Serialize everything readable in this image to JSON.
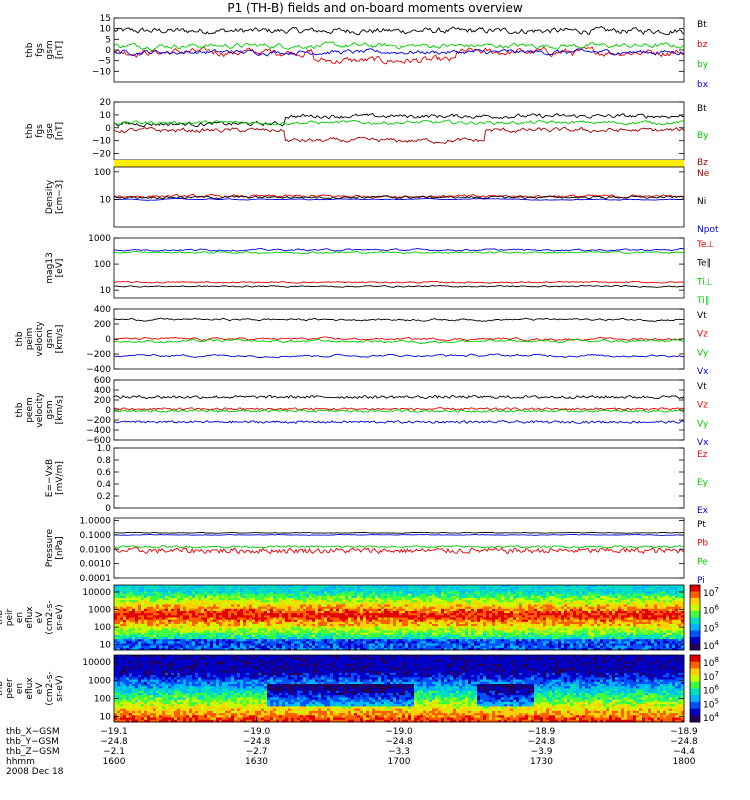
{
  "title": "P1 (TH-B) fields and on-board moments overview",
  "colors": {
    "black": "#000000",
    "red": "#ee0000",
    "green": "#00cc00",
    "blue": "#0000dd",
    "yellow": "#ffee00",
    "darkred": "#a00000"
  },
  "chart_data": [
    {
      "id": "p1",
      "type": "line",
      "ylabel": [
        "thb",
        "fgs",
        "gsm",
        "[nT]"
      ],
      "ylim": [
        -15,
        15
      ],
      "yticks": [
        -10,
        -5,
        0,
        5,
        10,
        15
      ],
      "yticklabels": [
        "−10",
        "−5",
        "0",
        "5",
        "10",
        "15"
      ],
      "legend": [
        {
          "text": "Bt",
          "color": "black"
        },
        {
          "text": "bz",
          "color": "red"
        },
        {
          "text": "by",
          "color": "green"
        },
        {
          "text": "bx",
          "color": "blue"
        }
      ]
    },
    {
      "id": "p2",
      "type": "line",
      "ylabel": [
        "thb",
        "fgs",
        "gse",
        "[nT]"
      ],
      "ylim": [
        -25,
        20
      ],
      "yticks": [
        -20,
        -10,
        0,
        10,
        20
      ],
      "yticklabels": [
        "−20",
        "−10",
        "0",
        "10",
        "20"
      ],
      "legend": [
        {
          "text": "Bt",
          "color": "black"
        },
        {
          "text": "By",
          "color": "green"
        },
        {
          "text": "Bz",
          "color": "darkred"
        }
      ]
    },
    {
      "id": "p3",
      "type": "bar",
      "note": "flag"
    },
    {
      "id": "p4",
      "type": "line",
      "ylabel": [
        "Density",
        "[cm−3]"
      ],
      "scale": "log",
      "ylim": [
        1,
        150
      ],
      "yticks": [
        10,
        100
      ],
      "yticklabels": [
        "10",
        "100"
      ],
      "legend": [
        {
          "text": "Ne",
          "color": "darkred"
        },
        {
          "text": "Ni",
          "color": "black"
        },
        {
          "text": "Npot",
          "color": "blue"
        }
      ]
    },
    {
      "id": "p5",
      "type": "line",
      "ylabel": [
        "mag13",
        "[eV]"
      ],
      "scale": "log",
      "ylim": [
        5,
        1000
      ],
      "yticks": [
        10,
        100,
        1000
      ],
      "yticklabels": [
        "10",
        "100",
        "1000"
      ],
      "legend": [
        {
          "text": "Te⊥",
          "color": "red"
        },
        {
          "text": "Te∥",
          "color": "black"
        },
        {
          "text": "Ti⊥",
          "color": "green"
        },
        {
          "text": "Ti∥",
          "color": "green"
        }
      ]
    },
    {
      "id": "p6",
      "type": "line",
      "ylabel": [
        "thb",
        "peim",
        "velocity",
        "gsm",
        "[km/s]"
      ],
      "ylim": [
        -400,
        400
      ],
      "yticks": [
        -400,
        -200,
        0,
        200,
        400
      ],
      "yticklabels": [
        "−400",
        "−200",
        "0",
        "200",
        "400"
      ],
      "legend": [
        {
          "text": "Vt",
          "color": "black"
        },
        {
          "text": "Vz",
          "color": "red"
        },
        {
          "text": "Vy",
          "color": "green"
        },
        {
          "text": "Vx",
          "color": "blue"
        }
      ]
    },
    {
      "id": "p7",
      "type": "line",
      "ylabel": [
        "thb",
        "peem",
        "velocity",
        "gsm",
        "[km/s]"
      ],
      "ylim": [
        -600,
        600
      ],
      "yticks": [
        -600,
        -400,
        -200,
        0,
        200,
        400,
        600
      ],
      "yticklabels": [
        "−600",
        "−400",
        "−200",
        "0",
        "200",
        "400",
        "600"
      ],
      "legend": [
        {
          "text": "Vt",
          "color": "black"
        },
        {
          "text": "Vz",
          "color": "red"
        },
        {
          "text": "Vy",
          "color": "green"
        },
        {
          "text": "Vx",
          "color": "blue"
        }
      ]
    },
    {
      "id": "p8",
      "type": "line",
      "ylabel": [
        "E=−VxB",
        "[mV/m]"
      ],
      "ylim": [
        0,
        1
      ],
      "yticks": [
        0,
        0.2,
        0.4,
        0.6,
        0.8,
        1.0
      ],
      "yticklabels": [
        "0",
        "0.2",
        "0.4",
        "0.6",
        "0.8",
        "1.0"
      ],
      "legend": [
        {
          "text": "Ez",
          "color": "red"
        },
        {
          "text": "Ey",
          "color": "green"
        },
        {
          "text": "Ex",
          "color": "blue"
        }
      ]
    },
    {
      "id": "p9",
      "type": "line",
      "ylabel": [
        "Pressure",
        "[nPa]"
      ],
      "scale": "log",
      "ylim": [
        0.0001,
        1.5
      ],
      "yticks": [
        0.0001,
        0.001,
        0.01,
        0.1,
        1.0
      ],
      "yticklabels": [
        "0.0001",
        "0.0010",
        "0.0100",
        "0.1000",
        "1.0000"
      ],
      "legend": [
        {
          "text": "Pt",
          "color": "black"
        },
        {
          "text": "Pb",
          "color": "red"
        },
        {
          "text": "Pe",
          "color": "green"
        },
        {
          "text": "Pi",
          "color": "blue"
        }
      ]
    },
    {
      "id": "p10",
      "type": "heatmap",
      "ylabel": [
        "thb",
        "peir",
        "en",
        "eflux",
        "eV",
        "(cm2-s-",
        "sr-eV)"
      ],
      "scale": "log",
      "ylim": [
        5,
        25000
      ],
      "yticks": [
        10,
        100,
        1000,
        10000
      ],
      "yticklabels": [
        "10",
        "100",
        "1000",
        "10000"
      ],
      "colorbar": {
        "labels": [
          "10",
          "10",
          "10",
          "10"
        ],
        "exps": [
          "7",
          "6",
          "5",
          "4"
        ]
      }
    },
    {
      "id": "p11",
      "type": "heatmap",
      "ylabel": [
        "thb",
        "peer",
        "en",
        "eflux",
        "eV",
        "(cm2-s-",
        "sr-eV)"
      ],
      "scale": "log",
      "ylim": [
        5,
        25000
      ],
      "yticks": [
        10,
        100,
        1000,
        10000
      ],
      "yticklabels": [
        "10",
        "100",
        "1000",
        "10000"
      ],
      "colorbar": {
        "labels": [
          "10",
          "10",
          "10",
          "10",
          "10"
        ],
        "exps": [
          "8",
          "7",
          "6",
          "5",
          "4"
        ]
      }
    }
  ],
  "xaxis": {
    "row_labels": [
      "thb_X−GSM",
      "thb_Y−GSM",
      "thb_Z−GSM",
      "hhmm",
      "2008 Dec 18"
    ],
    "ticks": [
      {
        "x": "−19.1",
        "y": "−24.8",
        "z": "−2.1",
        "t": "1600"
      },
      {
        "x": "−19.0",
        "y": "−24.8",
        "z": "−2.7",
        "t": "1630"
      },
      {
        "x": "−19.0",
        "y": "−24.8",
        "z": "−3.3",
        "t": "1700"
      },
      {
        "x": "−18.9",
        "y": "−24.8",
        "z": "−3.9",
        "t": "1730"
      },
      {
        "x": "−18.9",
        "y": "−24.8",
        "z": "−4.4",
        "t": "1800"
      }
    ]
  }
}
